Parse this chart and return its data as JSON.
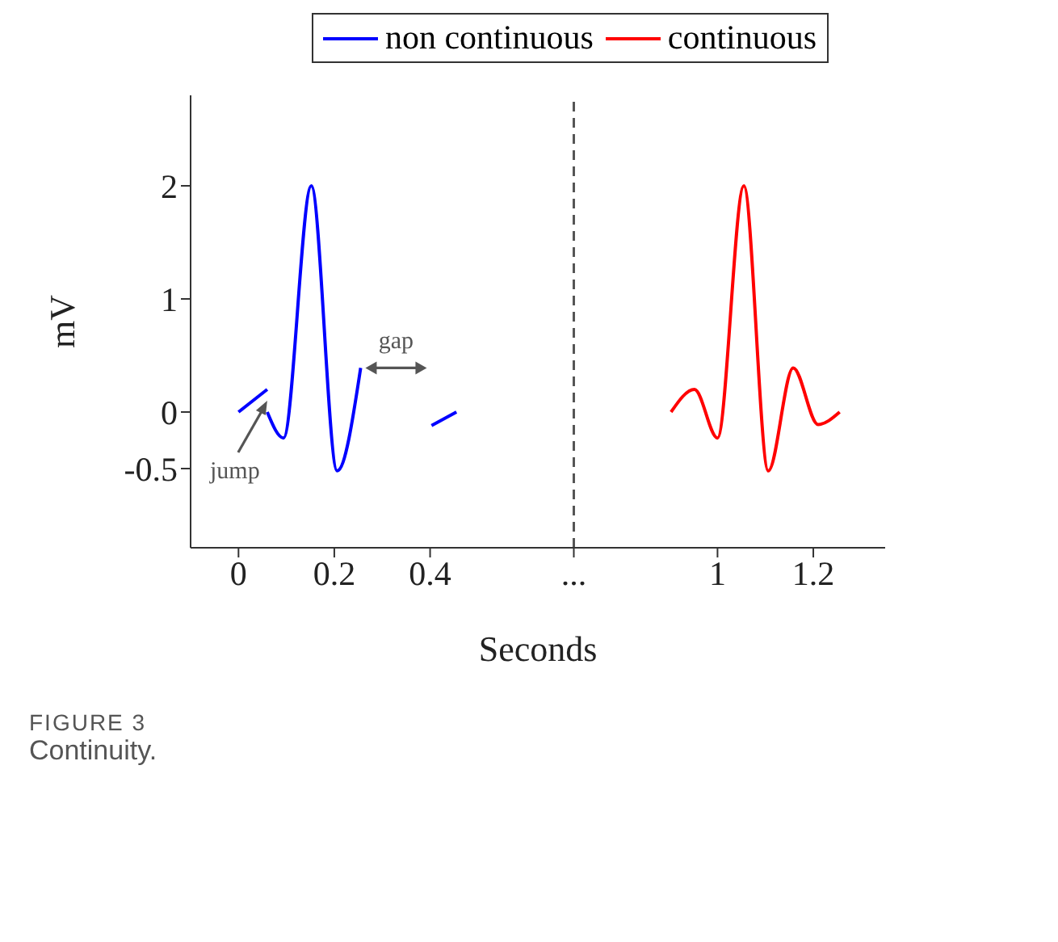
{
  "chart_data": {
    "type": "line",
    "xlabel": "Seconds",
    "ylabel": "mV",
    "xlim": [
      -0.1,
      1.35
    ],
    "xticks": [
      0,
      0.2,
      0.4,
      {
        "value": 0.7,
        "label": "..."
      },
      1,
      1.2
    ],
    "ylim": [
      -1.2,
      2.8
    ],
    "yticks": [
      -0.5,
      0,
      1,
      2
    ],
    "series": [
      {
        "name": "non continuous",
        "color": "#0000ff",
        "x": [
          0,
          0.06
        ],
        "values": [
          0,
          0.2
        ]
      },
      {
        "color": "#0000ff",
        "x": [
          0.06,
          0.094,
          0.152,
          0.206,
          0.255
        ],
        "values": [
          0,
          -0.23,
          2,
          -0.52,
          0.39
        ]
      },
      {
        "color": "#0000ff",
        "x": [
          0.403,
          0.455
        ],
        "values": [
          -0.12,
          0
        ]
      },
      {
        "name": "continuous",
        "color": "#ff0000",
        "x": [
          0.903,
          0.952,
          1.0,
          1.055,
          1.106,
          1.158,
          1.21,
          1.255
        ],
        "values": [
          0,
          0.2,
          -0.23,
          2,
          -0.52,
          0.39,
          -0.11,
          0
        ]
      }
    ],
    "ref_lines": [
      {
        "axis": "x",
        "value": 0.7,
        "color": "#555555",
        "line_style": "dashed"
      }
    ],
    "annotations": [
      {
        "text": "jump",
        "x": 0.06,
        "y": 0.1
      },
      "gap",
      "FIGURE 3",
      "Continuity."
    ],
    "legend": "top",
    "grid": false,
    "marker": "none",
    "line_style": "solid"
  }
}
